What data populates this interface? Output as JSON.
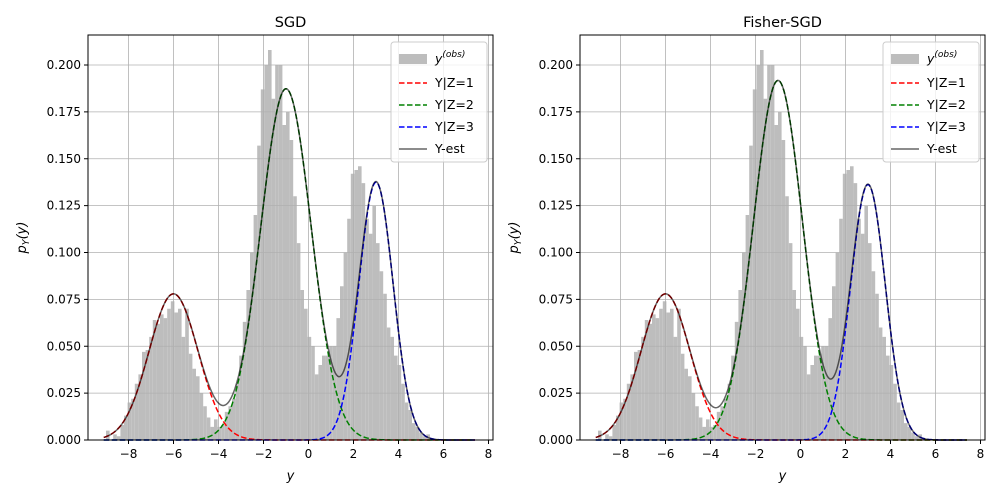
{
  "chart_data": [
    {
      "type": "histogram+line",
      "title": "SGD",
      "xlabel": "y",
      "ylabel": "p_Y(y)",
      "xlim": [
        -9.8,
        8.2
      ],
      "ylim": [
        0,
        0.216
      ],
      "xticks": [
        -8,
        -6,
        -4,
        -2,
        0,
        2,
        4,
        6,
        8
      ],
      "xtick_labels": [
        "−8",
        "−6",
        "−4",
        "−2",
        "0",
        "2",
        "4",
        "6",
        "8"
      ],
      "yticks": [
        0.0,
        0.025,
        0.05,
        0.075,
        0.1,
        0.125,
        0.15,
        0.175,
        0.2
      ],
      "ytick_labels": [
        "0.000",
        "0.025",
        "0.050",
        "0.075",
        "0.100",
        "0.125",
        "0.150",
        "0.175",
        "0.200"
      ],
      "grid": true,
      "legend_position": "upper-right",
      "histogram": {
        "label": "y^(obs)",
        "color": "#bdbdbd",
        "bin_edges_start": -9.0,
        "bin_width": 0.16,
        "heights": [
          0.005,
          0.0,
          0.003,
          0.002,
          0.008,
          0.013,
          0.02,
          0.022,
          0.03,
          0.035,
          0.047,
          0.048,
          0.055,
          0.064,
          0.062,
          0.067,
          0.065,
          0.07,
          0.074,
          0.068,
          0.07,
          0.055,
          0.07,
          0.046,
          0.038,
          0.034,
          0.025,
          0.018,
          0.012,
          0.007,
          0.011,
          0.007,
          0.008,
          0.015,
          0.018,
          0.022,
          0.03,
          0.045,
          0.063,
          0.08,
          0.1,
          0.12,
          0.157,
          0.187,
          0.2,
          0.208,
          0.182,
          0.2,
          0.2,
          0.168,
          0.175,
          0.16,
          0.13,
          0.105,
          0.08,
          0.07,
          0.055,
          0.05,
          0.035,
          0.04,
          0.045,
          0.045,
          0.05,
          0.05,
          0.065,
          0.082,
          0.1,
          0.118,
          0.142,
          0.144,
          0.146,
          0.137,
          0.118,
          0.11,
          0.125,
          0.105,
          0.09,
          0.078,
          0.06,
          0.055,
          0.045,
          0.04,
          0.03,
          0.02,
          0.016,
          0.009,
          0.007,
          0.004,
          0.002,
          0.003,
          0.001,
          0.0,
          0.0,
          0.0,
          0.0,
          0.0,
          0.0,
          0.0,
          0.0,
          0.0
        ]
      },
      "components": [
        {
          "name": "Y|Z=1",
          "color": "#ff0000",
          "style": "dashed",
          "mean": -6.0,
          "sd": 1.09,
          "weight": 0.213
        },
        {
          "name": "Y|Z=2",
          "color": "#008000",
          "style": "dashed",
          "mean": -1.0,
          "sd": 1.12,
          "weight": 0.526
        },
        {
          "name": "Y|Z=3",
          "color": "#0000ff",
          "style": "dashed",
          "mean": 3.0,
          "sd": 0.76,
          "weight": 0.262
        }
      ],
      "estimate": {
        "name": "Y-est",
        "color": "#000000",
        "style": "solid"
      },
      "curve_range": [
        -9.1,
        7.4
      ]
    },
    {
      "type": "histogram+line",
      "title": "Fisher-SGD",
      "xlabel": "y",
      "ylabel": "p_Y(y)",
      "xlim": [
        -9.8,
        8.2
      ],
      "ylim": [
        0,
        0.216
      ],
      "xticks": [
        -8,
        -6,
        -4,
        -2,
        0,
        2,
        4,
        6,
        8
      ],
      "xtick_labels": [
        "−8",
        "−6",
        "−4",
        "−2",
        "0",
        "2",
        "4",
        "6",
        "8"
      ],
      "yticks": [
        0.0,
        0.025,
        0.05,
        0.075,
        0.1,
        0.125,
        0.15,
        0.175,
        0.2
      ],
      "ytick_labels": [
        "0.000",
        "0.025",
        "0.050",
        "0.075",
        "0.100",
        "0.125",
        "0.150",
        "0.175",
        "0.200"
      ],
      "grid": true,
      "legend_position": "upper-right",
      "histogram": {
        "label": "y^(obs)",
        "color": "#bdbdbd",
        "bin_edges_start": -9.0,
        "bin_width": 0.16,
        "heights": [
          0.005,
          0.0,
          0.003,
          0.002,
          0.008,
          0.013,
          0.02,
          0.022,
          0.03,
          0.035,
          0.047,
          0.048,
          0.055,
          0.064,
          0.062,
          0.067,
          0.065,
          0.07,
          0.074,
          0.068,
          0.07,
          0.055,
          0.07,
          0.046,
          0.038,
          0.034,
          0.025,
          0.018,
          0.012,
          0.007,
          0.011,
          0.007,
          0.008,
          0.015,
          0.018,
          0.022,
          0.03,
          0.045,
          0.063,
          0.08,
          0.1,
          0.12,
          0.157,
          0.187,
          0.2,
          0.208,
          0.182,
          0.2,
          0.2,
          0.168,
          0.175,
          0.16,
          0.13,
          0.105,
          0.08,
          0.07,
          0.055,
          0.05,
          0.035,
          0.04,
          0.045,
          0.045,
          0.05,
          0.05,
          0.065,
          0.082,
          0.1,
          0.118,
          0.142,
          0.144,
          0.146,
          0.137,
          0.118,
          0.11,
          0.125,
          0.105,
          0.09,
          0.078,
          0.06,
          0.055,
          0.045,
          0.04,
          0.03,
          0.02,
          0.016,
          0.009,
          0.007,
          0.004,
          0.002,
          0.003,
          0.001,
          0.0,
          0.0,
          0.0,
          0.0,
          0.0,
          0.0,
          0.0,
          0.0,
          0.0
        ]
      },
      "components": [
        {
          "name": "Y|Z=1",
          "color": "#ff0000",
          "style": "dashed",
          "mean": -6.0,
          "sd": 1.09,
          "weight": 0.213
        },
        {
          "name": "Y|Z=2",
          "color": "#008000",
          "style": "dashed",
          "mean": -1.0,
          "sd": 1.09,
          "weight": 0.524
        },
        {
          "name": "Y|Z=3",
          "color": "#0000ff",
          "style": "dashed",
          "mean": 3.0,
          "sd": 0.77,
          "weight": 0.263
        }
      ],
      "estimate": {
        "name": "Y-est",
        "color": "#000000",
        "style": "solid"
      },
      "curve_range": [
        -9.1,
        7.4
      ]
    }
  ]
}
